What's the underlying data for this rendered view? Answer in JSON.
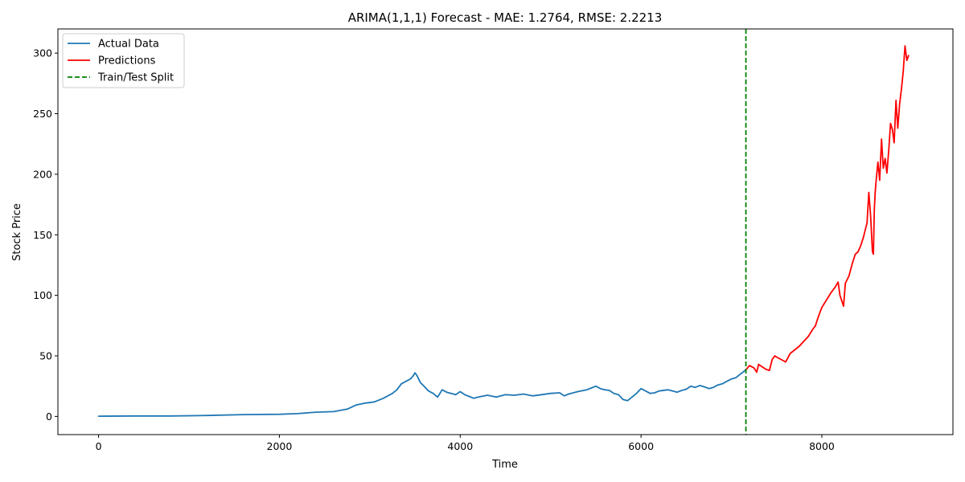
{
  "chart_data": {
    "type": "line",
    "title": "ARIMA(1,1,1) Forecast - MAE: 1.2764, RMSE: 2.2213",
    "xlabel": "Time",
    "ylabel": "Stock Price",
    "xlim": [
      -450,
      9450
    ],
    "ylim": [
      -15,
      320
    ],
    "xticks": [
      0,
      2000,
      4000,
      6000,
      8000
    ],
    "yticks": [
      0,
      50,
      100,
      150,
      200,
      250,
      300
    ],
    "grid": false,
    "legend_position": "top-left",
    "split_x": 7160,
    "series": [
      {
        "name": "Actual Data",
        "color": "#1f77b4",
        "style": "solid",
        "x": [
          0,
          400,
          800,
          1200,
          1600,
          2000,
          2200,
          2400,
          2600,
          2750,
          2850,
          2950,
          3050,
          3150,
          3250,
          3300,
          3350,
          3400,
          3450,
          3480,
          3500,
          3520,
          3560,
          3600,
          3650,
          3700,
          3750,
          3800,
          3850,
          3900,
          3950,
          4000,
          4050,
          4100,
          4150,
          4200,
          4300,
          4400,
          4500,
          4600,
          4700,
          4800,
          4900,
          5000,
          5100,
          5150,
          5200,
          5300,
          5400,
          5450,
          5500,
          5550,
          5600,
          5650,
          5700,
          5750,
          5800,
          5850,
          5900,
          5950,
          6000,
          6050,
          6100,
          6150,
          6200,
          6300,
          6400,
          6450,
          6500,
          6550,
          6600,
          6650,
          6700,
          6750,
          6800,
          6850,
          6900,
          6950,
          7000,
          7050,
          7100,
          7160
        ],
        "y": [
          0.2,
          0.4,
          0.4,
          0.8,
          1.5,
          1.8,
          2.3,
          3.5,
          4.0,
          6.0,
          9.5,
          11.0,
          12.0,
          15.0,
          19.0,
          22.0,
          27.0,
          29.0,
          31.0,
          33.5,
          36.0,
          34.0,
          28.0,
          25.0,
          21.0,
          19.0,
          16.0,
          22.0,
          20.0,
          19.0,
          18.0,
          20.5,
          18.0,
          16.5,
          15.0,
          16.0,
          17.5,
          16.0,
          18.0,
          17.5,
          18.5,
          17.0,
          18.0,
          19.0,
          19.5,
          17.0,
          18.5,
          20.5,
          22.0,
          23.5,
          25.0,
          23.0,
          22.0,
          21.5,
          19.0,
          18.0,
          14.0,
          13.0,
          16.0,
          19.0,
          23.0,
          21.0,
          19.0,
          19.5,
          21.0,
          22.0,
          20.0,
          21.5,
          22.5,
          25.0,
          24.0,
          25.5,
          24.5,
          23.0,
          24.0,
          26.0,
          27.0,
          29.0,
          31.0,
          32.0,
          35.0,
          38.5
        ]
      },
      {
        "name": "Predictions",
        "color": "#ff0000",
        "style": "solid",
        "x": [
          7160,
          7200,
          7250,
          7280,
          7300,
          7340,
          7380,
          7420,
          7450,
          7480,
          7500,
          7550,
          7600,
          7650,
          7700,
          7750,
          7800,
          7850,
          7900,
          7930,
          7950,
          7980,
          8000,
          8050,
          8100,
          8150,
          8180,
          8200,
          8240,
          8260,
          8300,
          8340,
          8370,
          8400,
          8430,
          8460,
          8500,
          8520,
          8540,
          8560,
          8570,
          8580,
          8590,
          8600,
          8620,
          8640,
          8660,
          8680,
          8700,
          8720,
          8740,
          8760,
          8780,
          8800,
          8820,
          8840,
          8860,
          8880,
          8900,
          8920,
          8940,
          8960
        ],
        "y": [
          38.5,
          42.0,
          40.0,
          36.5,
          43.0,
          41.0,
          39.0,
          38.0,
          47.0,
          50.0,
          49.0,
          47.0,
          45.0,
          52.0,
          55.0,
          58.0,
          62.0,
          66.0,
          72.0,
          75.0,
          80.0,
          86.0,
          90.0,
          96.0,
          102.0,
          107.0,
          111.0,
          100.0,
          91.0,
          110.0,
          116.0,
          127.0,
          134.0,
          136.0,
          141.0,
          148.0,
          160.0,
          185.0,
          165.0,
          136.0,
          134.0,
          170.0,
          185.0,
          194.0,
          210.0,
          195.0,
          229.0,
          205.0,
          213.0,
          201.0,
          220.0,
          242.0,
          237.0,
          226.0,
          261.0,
          238.0,
          258.0,
          270.0,
          285.0,
          306.0,
          294.0,
          298.0
        ]
      }
    ],
    "legend": {
      "items": [
        {
          "label": "Actual Data",
          "color": "#1f77b4",
          "style": "solid"
        },
        {
          "label": "Predictions",
          "color": "#ff0000",
          "style": "solid"
        },
        {
          "label": "Train/Test Split",
          "color": "#008000",
          "style": "dashed"
        }
      ]
    }
  }
}
